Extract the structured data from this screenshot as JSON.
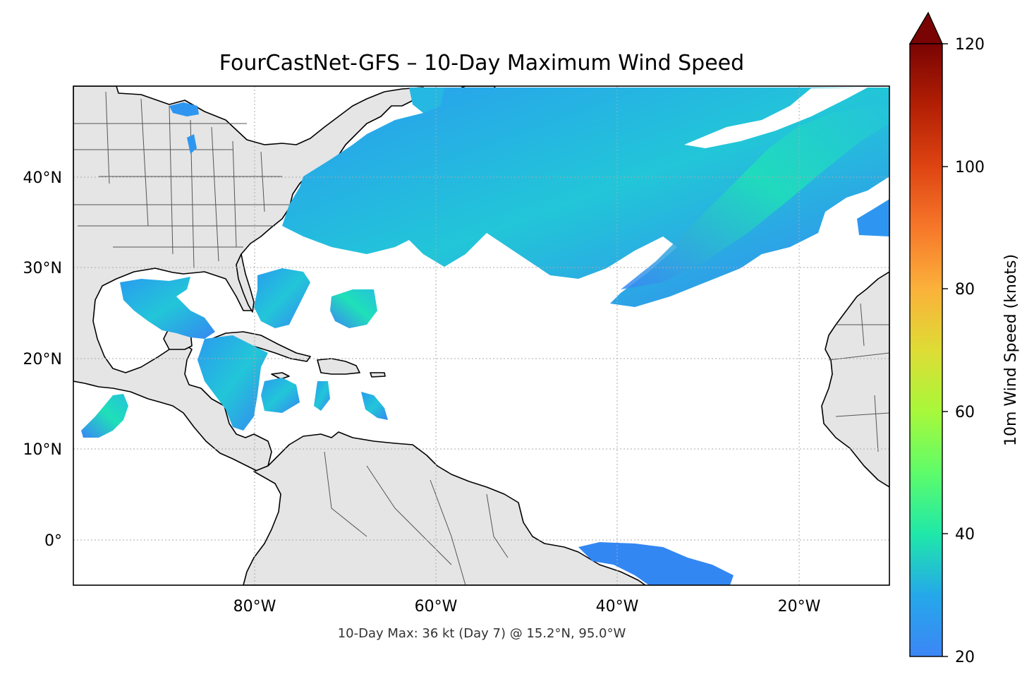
{
  "title": "FourCastNet-GFS – 10-Day Maximum Wind Speed",
  "subtitle": "10-Day Max: 36 kt (Day 7) @ 15.2°N, 95.0°W",
  "map": {
    "lon_range": [
      -100,
      -10
    ],
    "lat_range": [
      -5,
      50
    ],
    "x_ticks": [
      {
        "value": -80,
        "label": "80°W"
      },
      {
        "value": -60,
        "label": "60°W"
      },
      {
        "value": -40,
        "label": "40°W"
      },
      {
        "value": -20,
        "label": "20°W"
      }
    ],
    "y_ticks": [
      {
        "value": 40,
        "label": "40°N"
      },
      {
        "value": 30,
        "label": "30°N"
      },
      {
        "value": 20,
        "label": "20°N"
      },
      {
        "value": 10,
        "label": "10°N"
      },
      {
        "value": 0,
        "label": "0°"
      }
    ],
    "gridlines": true,
    "land_color": "#e5e5e5"
  },
  "colorbar": {
    "label": "10m Wind Speed (knots)",
    "vmin": 20,
    "vmax": 120,
    "extend": "max",
    "colormap": "turbo",
    "ticks": [
      {
        "value": 120,
        "label": "120"
      },
      {
        "value": 100,
        "label": "100"
      },
      {
        "value": 80,
        "label": "80"
      },
      {
        "value": 60,
        "label": "60"
      },
      {
        "value": 40,
        "label": "40"
      },
      {
        "value": 20,
        "label": "20"
      }
    ]
  },
  "colors": {
    "low_wind": "#3b82f6",
    "mid_wind": "#22c5d9",
    "high_wind": "#1de9b6"
  },
  "max_point": {
    "wind_kt": 36,
    "day": 7,
    "lat": 15.2,
    "lon": -95.0
  }
}
